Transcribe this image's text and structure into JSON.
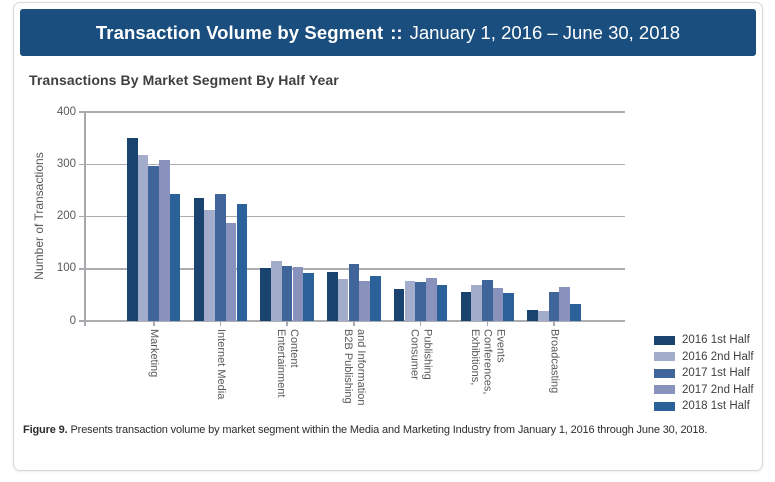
{
  "banner": {
    "title": "Transaction Volume by Segment",
    "separator": "::",
    "subtitle": "January 1, 2016 – June 30, 2018",
    "bg_color": "#1a4e7f"
  },
  "chart_title": "Transactions By Market Segment By Half Year",
  "caption": {
    "label": "Figure 9.",
    "text": "Presents transaction volume by market segment within the Media and Marketing Industry from January 1, 2016 through June 30, 2018."
  },
  "chart_data": {
    "type": "bar",
    "title": "Transactions By Market Segment By Half Year",
    "xlabel": "",
    "ylabel": "Number of Transactions",
    "ylim": [
      0,
      400
    ],
    "yticks": [
      0,
      100,
      200,
      300,
      400
    ],
    "grid": true,
    "legend_position": "bottom-right",
    "categories": [
      "Marketing",
      "Internet Media",
      "Entertainment Content",
      "B2B Publishing and Information",
      "Consumer Publishing",
      "Exhibitions, Conferences, Events",
      "Broadcasting"
    ],
    "category_label_lines": [
      [
        "Marketing"
      ],
      [
        "Internet Media"
      ],
      [
        "Entertainment",
        "Content"
      ],
      [
        "B2B Publishing",
        "and Information"
      ],
      [
        "Consumer",
        "Publishing"
      ],
      [
        "Exhibitions,",
        "Conferences,",
        "Events"
      ],
      [
        "Broadcasting"
      ]
    ],
    "series": [
      {
        "name": "2016 1st Half",
        "color": "#1b4370",
        "values": [
          350,
          236,
          101,
          94,
          62,
          56,
          22
        ]
      },
      {
        "name": "2016 2nd Half",
        "color": "#a3adcb",
        "values": [
          318,
          213,
          114,
          80,
          76,
          68,
          20
        ]
      },
      {
        "name": "2017 1st Half",
        "color": "#40659a",
        "values": [
          296,
          244,
          106,
          110,
          74,
          78,
          55
        ]
      },
      {
        "name": "2017 2nd Half",
        "color": "#8892bc",
        "values": [
          308,
          188,
          104,
          77,
          82,
          64,
          65
        ]
      },
      {
        "name": "2018 1st Half",
        "color": "#2b6199",
        "values": [
          243,
          224,
          92,
          87,
          68,
          53,
          32
        ]
      }
    ]
  }
}
